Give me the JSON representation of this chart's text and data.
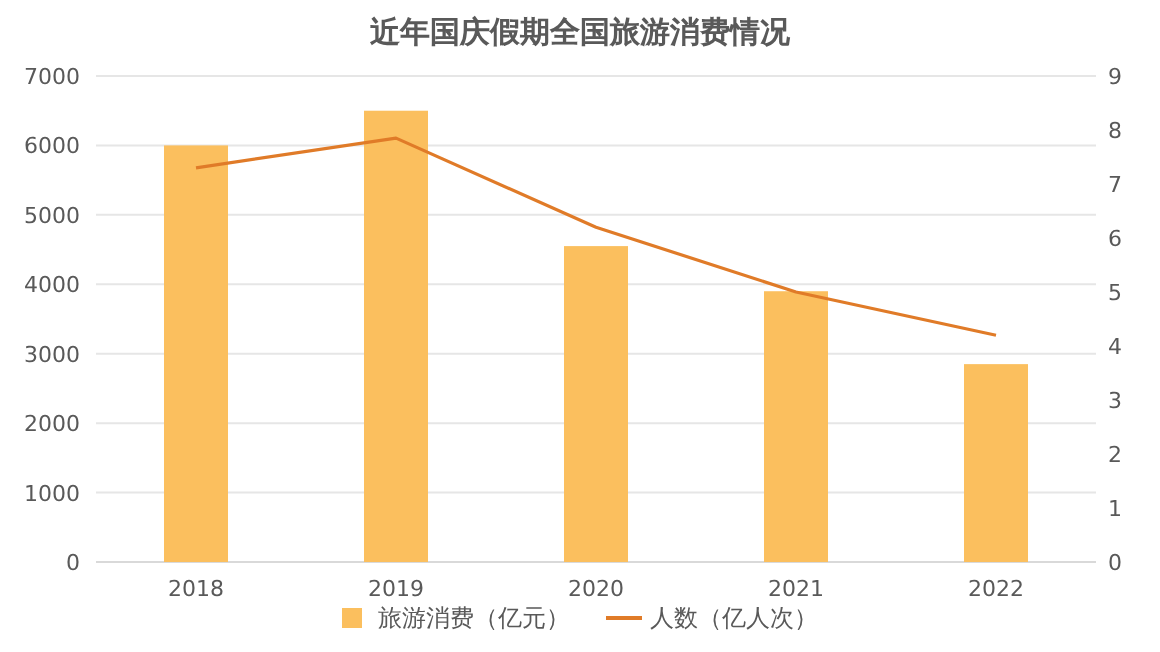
{
  "chart_data": {
    "type": "bar",
    "title": "近年国庆假期全国旅游消费情况",
    "categories": [
      "2018",
      "2019",
      "2020",
      "2021",
      "2022"
    ],
    "series": [
      {
        "name": "旅游消费（亿元）",
        "color": "#fbbf5e",
        "values": [
          6000,
          6500,
          4550,
          3900,
          2850
        ]
      },
      {
        "name": "人数（亿人次）",
        "type": "line",
        "axis": "y2",
        "color": "#e07b28",
        "values": [
          7.3,
          7.85,
          6.2,
          5.0,
          4.2
        ]
      }
    ],
    "ylim": [
      0,
      7000
    ],
    "yticks": [
      0,
      1000,
      2000,
      3000,
      4000,
      5000,
      6000,
      7000
    ],
    "y2lim": [
      0,
      9
    ],
    "y2ticks": [
      0,
      1,
      2,
      3,
      4,
      5,
      6,
      7,
      8,
      9
    ],
    "grid": "y",
    "legend": "bottom",
    "marker": "none"
  }
}
